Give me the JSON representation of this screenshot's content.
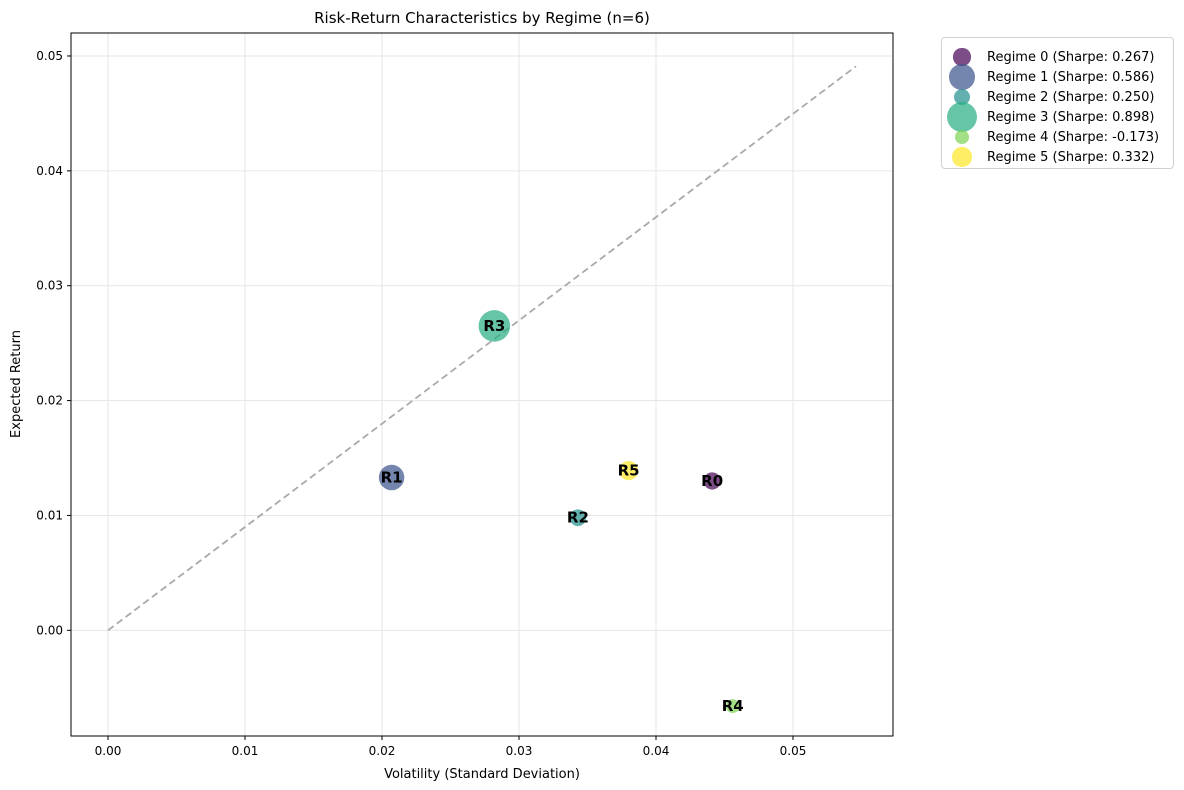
{
  "chart_data": {
    "type": "scatter",
    "title": "Risk-Return Characteristics by Regime (n=6)",
    "xlabel": "Volatility (Standard Deviation)",
    "ylabel": "Expected Return",
    "xlim": [
      -0.0027,
      0.0573
    ],
    "ylim": [
      -0.0092,
      0.052
    ],
    "xticks": [
      "0.00",
      "0.01",
      "0.02",
      "0.03",
      "0.04",
      "0.05"
    ],
    "yticks": [
      "0.00",
      "0.01",
      "0.02",
      "0.03",
      "0.04",
      "0.05"
    ],
    "grid": true,
    "legend_position": "outside top-right",
    "reference_line": {
      "style": "dashed",
      "color": "#aaaaaa",
      "x": [
        0,
        0.0546
      ],
      "y": [
        0,
        0.0491
      ]
    },
    "series": [
      {
        "name": "Regime 0 (Sharpe: 0.267)",
        "label": "R0",
        "x": 0.0441,
        "y": 0.013,
        "sharpe": 0.267,
        "color": "#440154"
      },
      {
        "name": "Regime 1 (Sharpe: 0.586)",
        "label": "R1",
        "x": 0.0207,
        "y": 0.0133,
        "sharpe": 0.586,
        "color": "#3b528b"
      },
      {
        "name": "Regime 2 (Sharpe: 0.250)",
        "label": "R2",
        "x": 0.0343,
        "y": 0.0098,
        "sharpe": 0.25,
        "color": "#21908d"
      },
      {
        "name": "Regime 3 (Sharpe: 0.898)",
        "label": "R3",
        "x": 0.0282,
        "y": 0.0265,
        "sharpe": 0.898,
        "color": "#27ad81"
      },
      {
        "name": "Regime 4 (Sharpe: -0.173)",
        "label": "R4",
        "x": 0.0456,
        "y": -0.0066,
        "sharpe": -0.173,
        "color": "#7ad151"
      },
      {
        "name": "Regime 5 (Sharpe: 0.332)",
        "label": "R5",
        "x": 0.038,
        "y": 0.0139,
        "sharpe": 0.332,
        "color": "#fde725"
      }
    ]
  }
}
